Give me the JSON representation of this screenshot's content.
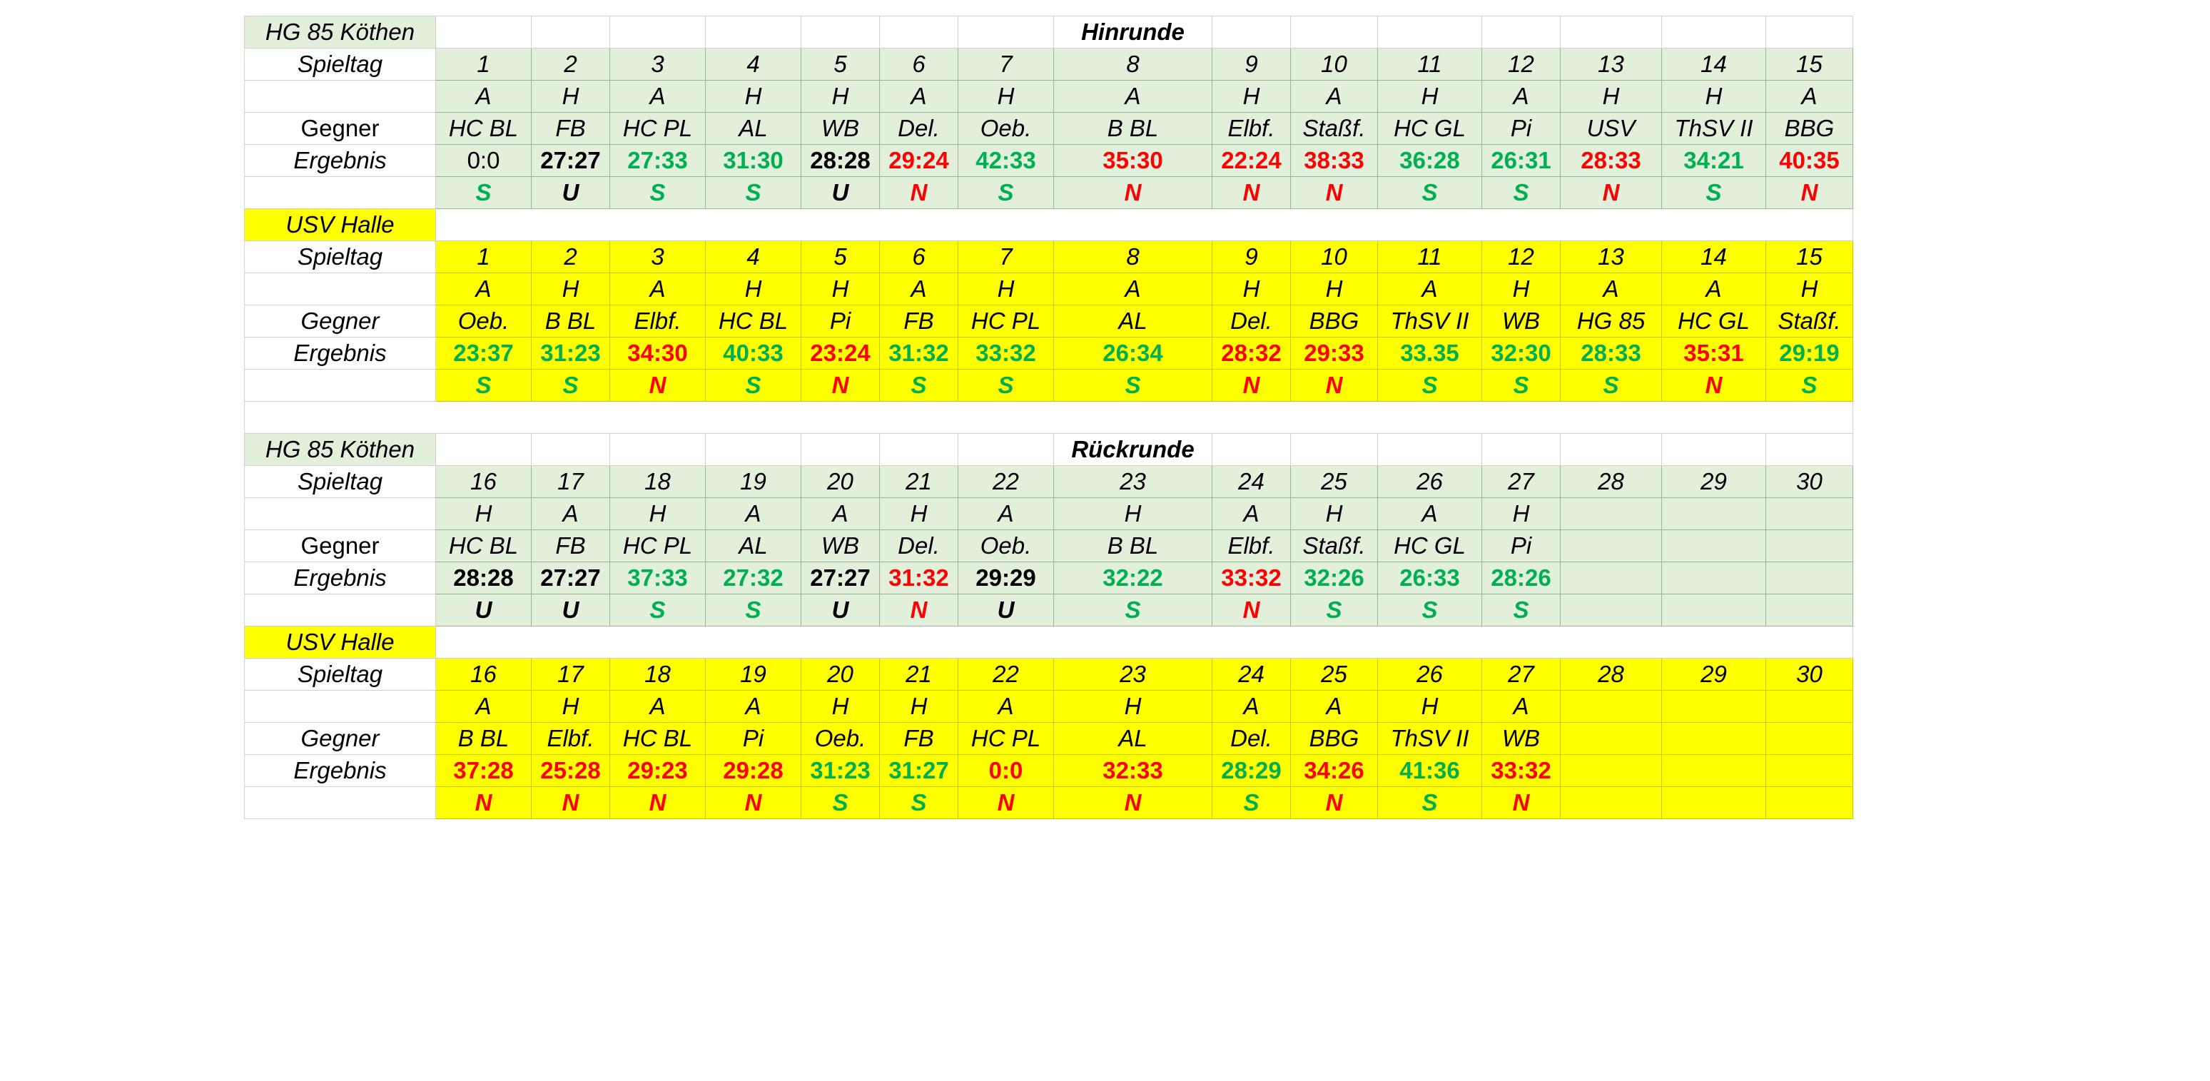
{
  "blocks": [
    {
      "id": "hin",
      "title": "Hinrunde",
      "tables": [
        {
          "team": "HG 85 Köthen",
          "theme": "green",
          "labels": {
            "spieltag": "Spieltag",
            "gegner": "Gegner",
            "ergebnis": "Ergebnis"
          },
          "spieltag": [
            "1",
            "2",
            "3",
            "4",
            "5",
            "6",
            "7",
            "8",
            "9",
            "10",
            "11",
            "12",
            "13",
            "14",
            "15"
          ],
          "ha": [
            "A",
            "H",
            "A",
            "H",
            "H",
            "A",
            "H",
            "A",
            "H",
            "A",
            "H",
            "A",
            "H",
            "H",
            "A"
          ],
          "gegner": [
            "HC BL",
            "FB",
            "HC PL",
            "AL",
            "WB",
            "Del.",
            "Oeb.",
            "B BL",
            "Elbf.",
            "Staßf.",
            "HC GL",
            "Pi",
            "USV",
            "ThSV II",
            "BBG"
          ],
          "ergebnis": [
            "0:0",
            "27:27",
            "27:33",
            "31:30",
            "28:28",
            "29:24",
            "42:33",
            "35:30",
            "22:24",
            "38:33",
            "36:28",
            "26:31",
            "28:33",
            "34:21",
            "40:35"
          ],
          "result": [
            "S",
            "U",
            "S",
            "S",
            "U",
            "N",
            "S",
            "N",
            "N",
            "N",
            "S",
            "S",
            "N",
            "S",
            "N"
          ],
          "score_color": [
            "plain",
            "black",
            "green",
            "green",
            "black",
            "red",
            "green",
            "red",
            "red",
            "red",
            "green",
            "green",
            "red",
            "green",
            "red"
          ],
          "result_color": [
            "green",
            "black",
            "green",
            "green",
            "black",
            "red",
            "green",
            "red",
            "red",
            "red",
            "green",
            "green",
            "red",
            "green",
            "red"
          ]
        },
        {
          "team": "USV Halle",
          "theme": "yellow",
          "labels": {
            "spieltag": "Spieltag",
            "gegner": "Gegner",
            "ergebnis": "Ergebnis"
          },
          "spieltag": [
            "1",
            "2",
            "3",
            "4",
            "5",
            "6",
            "7",
            "8",
            "9",
            "10",
            "11",
            "12",
            "13",
            "14",
            "15"
          ],
          "ha": [
            "A",
            "H",
            "A",
            "H",
            "H",
            "A",
            "H",
            "A",
            "H",
            "H",
            "A",
            "H",
            "A",
            "A",
            "H"
          ],
          "gegner": [
            "Oeb.",
            "B BL",
            "Elbf.",
            "HC BL",
            "Pi",
            "FB",
            "HC PL",
            "AL",
            "Del.",
            "BBG",
            "ThSV II",
            "WB",
            "HG 85",
            "HC GL",
            "Staßf."
          ],
          "ergebnis": [
            "23:37",
            "31:23",
            "34:30",
            "40:33",
            "23:24",
            "31:32",
            "33:32",
            "26:34",
            "28:32",
            "29:33",
            "33.35",
            "32:30",
            "28:33",
            "35:31",
            "29:19"
          ],
          "result": [
            "S",
            "S",
            "N",
            "S",
            "N",
            "S",
            "S",
            "S",
            "N",
            "N",
            "S",
            "S",
            "S",
            "N",
            "S"
          ],
          "score_color": [
            "green",
            "green",
            "red",
            "green",
            "red",
            "green",
            "green",
            "green",
            "red",
            "red",
            "green",
            "green",
            "green",
            "red",
            "green"
          ],
          "result_color": [
            "green",
            "green",
            "red",
            "green",
            "red",
            "green",
            "green",
            "green",
            "red",
            "red",
            "green",
            "green",
            "green",
            "red",
            "green"
          ]
        }
      ]
    },
    {
      "id": "rueck",
      "title": "Rückrunde",
      "tables": [
        {
          "team": "HG 85 Köthen",
          "theme": "green",
          "labels": {
            "spieltag": "Spieltag",
            "gegner": "Gegner",
            "ergebnis": "Ergebnis"
          },
          "spieltag": [
            "16",
            "17",
            "18",
            "19",
            "20",
            "21",
            "22",
            "23",
            "24",
            "25",
            "26",
            "27",
            "28",
            "29",
            "30"
          ],
          "ha": [
            "H",
            "A",
            "H",
            "A",
            "A",
            "H",
            "A",
            "H",
            "A",
            "H",
            "A",
            "H",
            "",
            "",
            ""
          ],
          "gegner": [
            "HC BL",
            "FB",
            "HC PL",
            "AL",
            "WB",
            "Del.",
            "Oeb.",
            "B BL",
            "Elbf.",
            "Staßf.",
            "HC GL",
            "Pi",
            "",
            "",
            ""
          ],
          "ergebnis": [
            "28:28",
            "27:27",
            "37:33",
            "27:32",
            "27:27",
            "31:32",
            "29:29",
            "32:22",
            "33:32",
            "32:26",
            "26:33",
            "28:26",
            "",
            "",
            ""
          ],
          "result": [
            "U",
            "U",
            "S",
            "S",
            "U",
            "N",
            "U",
            "S",
            "N",
            "S",
            "S",
            "S",
            "",
            "",
            ""
          ],
          "score_color": [
            "black",
            "black",
            "green",
            "green",
            "black",
            "red",
            "black",
            "green",
            "red",
            "green",
            "green",
            "green",
            "",
            "",
            ""
          ],
          "result_color": [
            "black",
            "black",
            "green",
            "green",
            "black",
            "red",
            "black",
            "green",
            "red",
            "green",
            "green",
            "green",
            "",
            "",
            ""
          ]
        },
        {
          "team": "USV Halle",
          "theme": "yellow",
          "labels": {
            "spieltag": "Spieltag",
            "gegner": "Gegner",
            "ergebnis": "Ergebnis"
          },
          "spieltag": [
            "16",
            "17",
            "18",
            "19",
            "20",
            "21",
            "22",
            "23",
            "24",
            "25",
            "26",
            "27",
            "28",
            "29",
            "30"
          ],
          "ha": [
            "A",
            "H",
            "A",
            "A",
            "H",
            "H",
            "A",
            "H",
            "A",
            "A",
            "H",
            "A",
            "",
            "",
            ""
          ],
          "gegner": [
            "B BL",
            "Elbf.",
            "HC BL",
            "Pi",
            "Oeb.",
            "FB",
            "HC PL",
            "AL",
            "Del.",
            "BBG",
            "ThSV II",
            "WB",
            "",
            "",
            ""
          ],
          "ergebnis": [
            "37:28",
            "25:28",
            "29:23",
            "29:28",
            "31:23",
            "31:27",
            "0:0",
            "32:33",
            "28:29",
            "34:26",
            "41:36",
            "33:32",
            "",
            "",
            ""
          ],
          "result": [
            "N",
            "N",
            "N",
            "N",
            "S",
            "S",
            "N",
            "N",
            "S",
            "N",
            "S",
            "N",
            "",
            "",
            ""
          ],
          "score_color": [
            "red",
            "red",
            "red",
            "red",
            "green",
            "green",
            "red",
            "red",
            "green",
            "red",
            "green",
            "red",
            "",
            "",
            ""
          ],
          "result_color": [
            "red",
            "red",
            "red",
            "red",
            "green",
            "green",
            "red",
            "red",
            "green",
            "red",
            "green",
            "red",
            "",
            "",
            ""
          ]
        }
      ]
    }
  ]
}
